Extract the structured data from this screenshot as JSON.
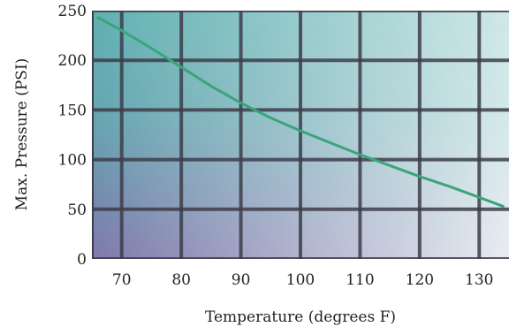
{
  "chart_data": {
    "type": "line",
    "title": "",
    "xlabel": "Temperature (degrees F)",
    "ylabel": "Max. Pressure (PSI)",
    "xlim": [
      65,
      135
    ],
    "ylim": [
      0,
      250
    ],
    "x_ticks": [
      "70",
      "80",
      "90",
      "100",
      "110",
      "120",
      "130"
    ],
    "y_ticks": [
      "0",
      "50",
      "100",
      "150",
      "200",
      "250"
    ],
    "grid": true,
    "legend": "none",
    "series": [
      {
        "color": "#3aa57a",
        "x": [
          66,
          70,
          75,
          80,
          85,
          90,
          95,
          100,
          105,
          110,
          115,
          120,
          125,
          130,
          134
        ],
        "y": [
          243,
          230,
          212,
          193,
          174,
          157,
          142,
          129,
          117,
          105,
          94,
          83,
          73,
          62,
          53
        ]
      }
    ],
    "colors": {
      "gradient_top_left": "#5fb2b2",
      "gradient_top_right": "#cfe8e8",
      "gradient_bottom_left": "#8a62a8",
      "gradient_bottom_right": "#f2eef5",
      "grid_line": "#3d3d4a"
    }
  }
}
